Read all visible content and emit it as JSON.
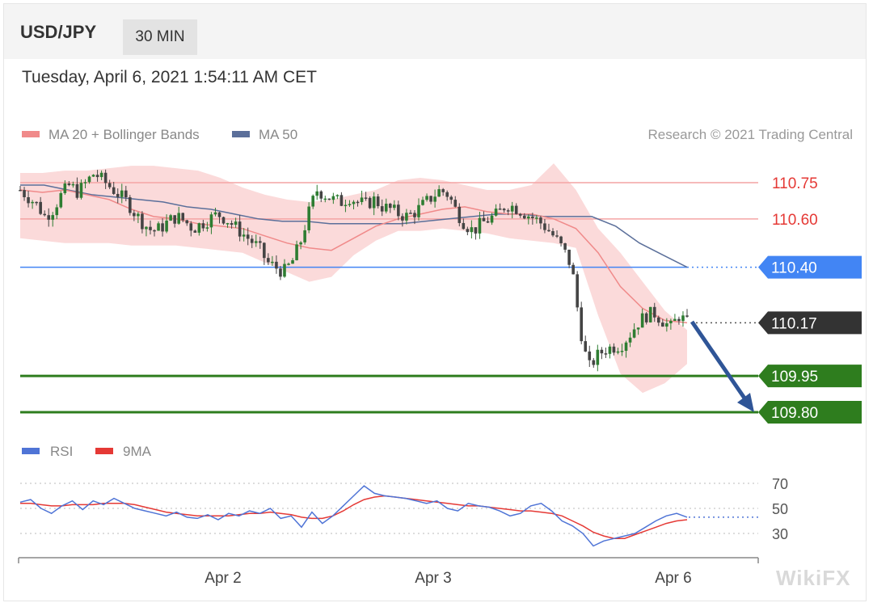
{
  "header": {
    "symbol": "USD/JPY",
    "timeframe": "30 MIN",
    "datetime": "Tuesday, April 6, 2021 1:54:11 AM CET"
  },
  "legend": {
    "ma20_label": "MA 20 + Bollinger Bands",
    "ma50_label": "MA 50",
    "credit": "Research © 2021 Trading Central",
    "rsi_label": "RSI",
    "rsi_ma_label": "9MA"
  },
  "watermark": "WikiFX",
  "colors": {
    "bollinger_fill": "#fbd6d6",
    "ma20": "#f08a8a",
    "ma50": "#5b6f9a",
    "resistance": "#e53935",
    "pivot": "#4285f4",
    "support": "#2e7d1e",
    "price_box": "#333333",
    "arrow": "#2f5597",
    "candle_up": "#2e7d32",
    "candle_down": "#444444",
    "rsi": "#4f74d6",
    "rsi_ma": "#e53935"
  },
  "chart_data": [
    {
      "type": "candlestick",
      "title": "USD/JPY",
      "ylim": [
        109.7,
        110.86
      ],
      "x_ticks": [
        "Apr 2",
        "Apr 3",
        "Apr 6"
      ],
      "levels": [
        {
          "value": 110.75,
          "label": "110.75",
          "kind": "resistance"
        },
        {
          "value": 110.6,
          "label": "110.60",
          "kind": "resistance"
        },
        {
          "value": 110.4,
          "label": "110.40",
          "kind": "pivot"
        },
        {
          "value": 110.17,
          "label": "110.17",
          "kind": "last-price"
        },
        {
          "value": 109.95,
          "label": "109.95",
          "kind": "support"
        },
        {
          "value": 109.8,
          "label": "109.80",
          "kind": "support"
        }
      ],
      "close_path": [
        110.72,
        110.69,
        110.66,
        110.61,
        110.64,
        110.7,
        110.74,
        110.71,
        110.75,
        110.79,
        110.76,
        110.73,
        110.7,
        110.67,
        110.62,
        110.58,
        110.55,
        110.56,
        110.59,
        110.61,
        110.59,
        110.56,
        110.58,
        110.6,
        110.62,
        110.6,
        110.57,
        110.54,
        110.51,
        110.48,
        110.42,
        110.4,
        110.38,
        110.42,
        110.5,
        110.62,
        110.72,
        110.7,
        110.68,
        110.67,
        110.69,
        110.67,
        110.66,
        110.68,
        110.65,
        110.64,
        110.62,
        110.61,
        110.63,
        110.66,
        110.69,
        110.72,
        110.7,
        110.63,
        110.58,
        110.55,
        110.58,
        110.6,
        110.62,
        110.66,
        110.65,
        110.63,
        110.61,
        110.59,
        110.56,
        110.52,
        110.47,
        110.4,
        110.15,
        109.98,
        110.03,
        110.06,
        110.07,
        110.08,
        110.12,
        110.17,
        110.2,
        110.21,
        110.18,
        110.15,
        110.2,
        110.17
      ],
      "bollinger_upper": [
        110.79,
        110.79,
        110.8,
        110.8,
        110.81,
        110.82,
        110.82,
        110.81,
        110.8,
        110.77,
        110.73,
        110.7,
        110.68,
        110.67,
        110.68,
        110.7,
        110.72,
        110.76,
        110.77,
        110.76,
        110.74,
        110.72,
        110.72,
        110.74,
        110.83,
        110.72,
        110.56,
        110.46,
        110.34,
        110.22,
        110.14
      ],
      "bollinger_lower": [
        110.52,
        110.51,
        110.5,
        110.5,
        110.5,
        110.49,
        110.49,
        110.49,
        110.48,
        110.47,
        110.46,
        110.42,
        110.38,
        110.34,
        110.36,
        110.45,
        110.51,
        110.55,
        110.55,
        110.56,
        110.55,
        110.54,
        110.52,
        110.51,
        110.5,
        110.48,
        110.2,
        109.96,
        109.88,
        109.92,
        110.0
      ],
      "ma20": [
        110.72,
        110.71,
        110.72,
        110.7,
        110.68,
        110.64,
        110.61,
        110.6,
        110.58,
        110.57,
        110.56,
        110.53,
        110.5,
        110.48,
        110.47,
        110.52,
        110.57,
        110.6,
        110.62,
        110.64,
        110.65,
        110.63,
        110.62,
        110.62,
        110.6,
        110.56,
        110.46,
        110.32,
        110.23,
        110.18,
        110.17
      ],
      "ma50": [
        110.74,
        110.74,
        110.72,
        110.7,
        110.69,
        110.68,
        110.67,
        110.65,
        110.64,
        110.62,
        110.6,
        110.59,
        110.59,
        110.58,
        110.58,
        110.58,
        110.58,
        110.59,
        110.6,
        110.61,
        110.62,
        110.62,
        110.61,
        110.61,
        110.61,
        110.57,
        110.5,
        110.45,
        110.4
      ]
    },
    {
      "type": "line",
      "title": "RSI",
      "ylim": [
        10,
        90
      ],
      "y_ticks": [
        70,
        50,
        30
      ],
      "series": [
        {
          "name": "RSI",
          "values": [
            55,
            57,
            50,
            46,
            52,
            56,
            49,
            56,
            53,
            58,
            54,
            50,
            48,
            46,
            44,
            47,
            43,
            42,
            45,
            41,
            46,
            44,
            48,
            46,
            50,
            42,
            44,
            35,
            47,
            38,
            44,
            52,
            60,
            68,
            62,
            60,
            59,
            58,
            56,
            54,
            56,
            50,
            48,
            54,
            52,
            51,
            48,
            44,
            46,
            52,
            54,
            48,
            40,
            36,
            30,
            20,
            24,
            26,
            28,
            30,
            35,
            40,
            44,
            46,
            43
          ]
        },
        {
          "name": "9MA",
          "values": [
            54,
            54,
            53,
            52,
            52,
            53,
            53,
            53,
            54,
            54,
            54,
            53,
            51,
            49,
            47,
            46,
            45,
            44,
            44,
            44,
            44,
            45,
            46,
            46,
            47,
            46,
            45,
            43,
            42,
            42,
            44,
            48,
            53,
            57,
            59,
            60,
            59,
            58,
            57,
            56,
            55,
            54,
            53,
            52,
            52,
            51,
            50,
            49,
            48,
            48,
            47,
            46,
            44,
            40,
            36,
            31,
            28,
            26,
            26,
            29,
            32,
            35,
            38,
            40,
            41
          ]
        }
      ]
    }
  ]
}
